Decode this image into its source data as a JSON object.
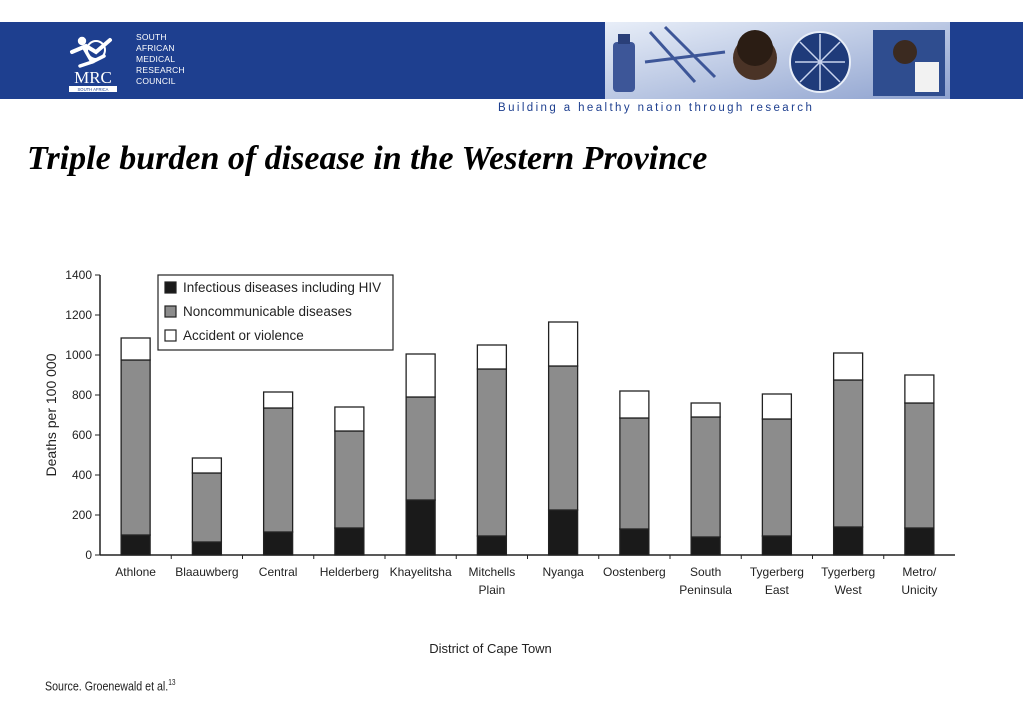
{
  "header": {
    "org_lines": [
      "SOUTH",
      "AFRICAN",
      "MEDICAL",
      "RESEARCH",
      "COUNCIL"
    ],
    "logo_text": "MRC",
    "logo_subtext": "SOUTH AFRICA",
    "tagline": "Building a healthy nation through research",
    "band_color": "#1e3f8f"
  },
  "slide": {
    "title": "Triple burden of disease in the Western Province"
  },
  "source": {
    "text": "Source. Groenewald et al.",
    "ref": "13"
  },
  "chart_data": {
    "type": "bar",
    "stacked": true,
    "title": "",
    "xlabel": "District of Cape Town",
    "ylabel": "Deaths per 100 000",
    "ylim": [
      0,
      1400
    ],
    "yticks": [
      0,
      200,
      400,
      600,
      800,
      1000,
      1200,
      1400
    ],
    "grid": false,
    "legend_position": "top-left",
    "categories": [
      "Athlone",
      "Blaauwberg",
      "Central",
      "Helderberg",
      "Khayelitsha",
      "Mitchells Plain",
      "Nyanga",
      "Oostenberg",
      "South Peninsula",
      "Tygerberg East",
      "Tygerberg West",
      "Metro/ Unicity"
    ],
    "category_lines": [
      [
        "Athlone"
      ],
      [
        "Blaauwberg"
      ],
      [
        "Central"
      ],
      [
        "Helderberg"
      ],
      [
        "Khayelitsha"
      ],
      [
        "Mitchells",
        "Plain"
      ],
      [
        "Nyanga"
      ],
      [
        "Oostenberg"
      ],
      [
        "South",
        "Peninsula"
      ],
      [
        "Tygerberg",
        "East"
      ],
      [
        "Tygerberg",
        "West"
      ],
      [
        "Metro/",
        "Unicity"
      ]
    ],
    "series": [
      {
        "name": "Infectious diseases including HIV",
        "color": "#1a1a1a",
        "values": [
          100,
          65,
          115,
          135,
          275,
          95,
          225,
          130,
          90,
          95,
          140,
          135
        ]
      },
      {
        "name": "Noncommunicable diseases",
        "color": "#8c8c8c",
        "values": [
          875,
          345,
          620,
          485,
          515,
          835,
          720,
          555,
          600,
          585,
          735,
          625
        ]
      },
      {
        "name": "Accident or violence",
        "color": "#ffffff",
        "values": [
          110,
          75,
          80,
          120,
          215,
          120,
          220,
          135,
          70,
          125,
          135,
          140
        ]
      }
    ]
  }
}
